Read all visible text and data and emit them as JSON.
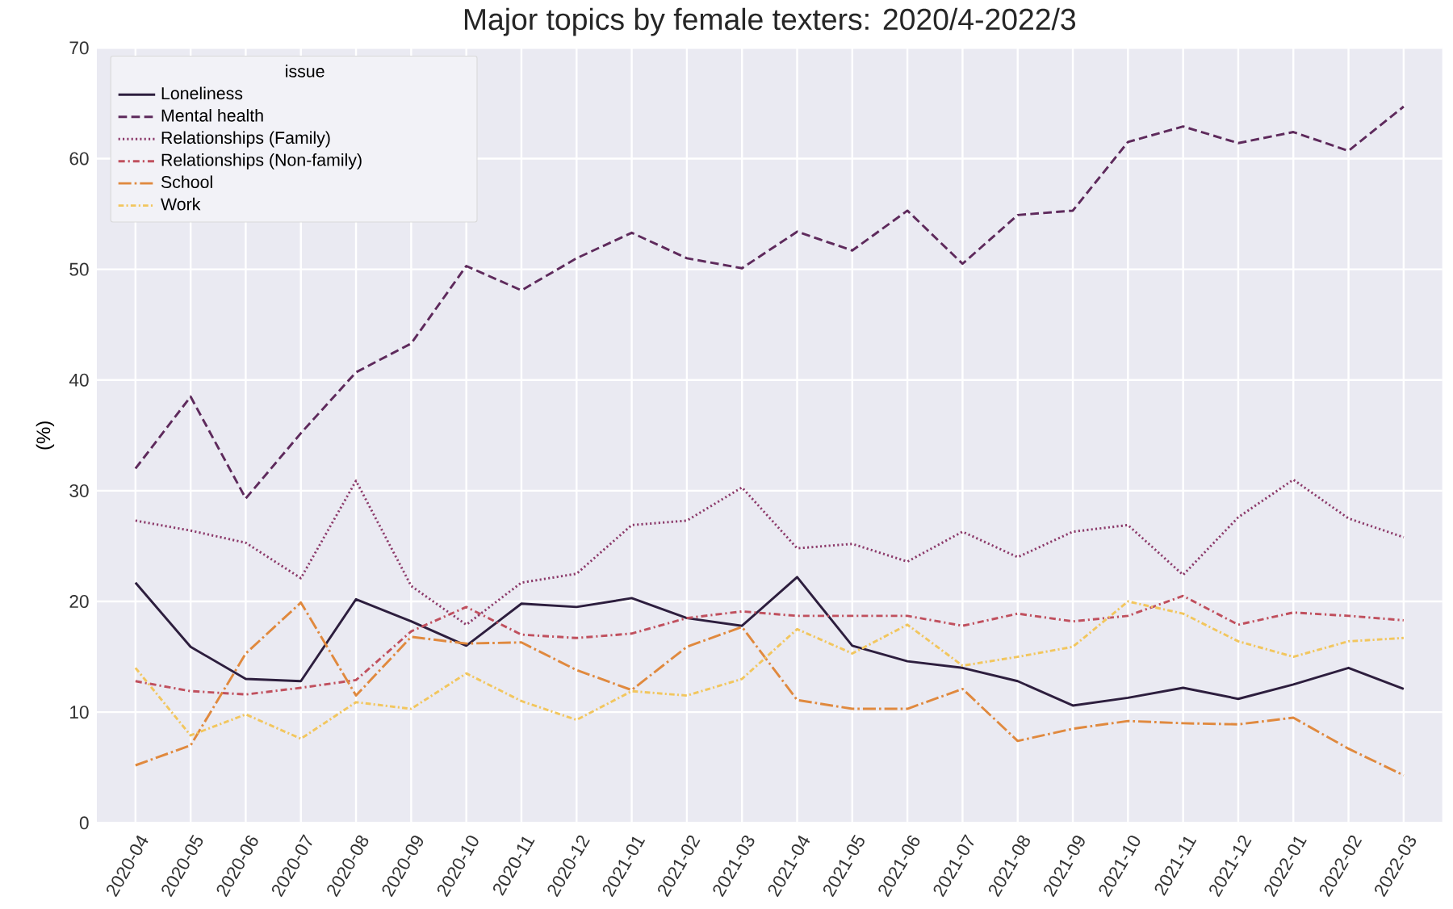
{
  "chart_data": {
    "type": "line",
    "title": "Major topics by female texters: 2020/4-2022/3",
    "ylabel": "(%)",
    "legend_title": "issue",
    "legend": "top left",
    "grid": true,
    "categories": [
      "2020-04",
      "2020-05",
      "2020-06",
      "2020-07",
      "2020-08",
      "2020-09",
      "2020-10",
      "2020-11",
      "2020-12",
      "2021-01",
      "2021-02",
      "2021-03",
      "2021-04",
      "2021-05",
      "2021-06",
      "2021-07",
      "2021-08",
      "2021-09",
      "2021-10",
      "2021-11",
      "2021-12",
      "2022-01",
      "2022-02",
      "2022-03"
    ],
    "ylim": [
      0,
      70
    ],
    "yticks": [
      0,
      10,
      20,
      30,
      40,
      50,
      60,
      70
    ],
    "series": [
      {
        "name": "Loneliness",
        "color": "#2d1e3e",
        "line_style": "solid",
        "values": [
          21.7,
          15.9,
          13.0,
          12.8,
          20.2,
          18.2,
          16.0,
          19.8,
          19.5,
          20.3,
          18.5,
          17.8,
          22.2,
          16.0,
          14.6,
          14.0,
          12.8,
          10.6,
          11.3,
          12.2,
          11.2,
          12.5,
          14.0,
          12.1
        ]
      },
      {
        "name": "Mental health",
        "color": "#5e2a5c",
        "line_style": "dashed",
        "values": [
          32.0,
          38.5,
          29.3,
          35.2,
          40.7,
          43.3,
          50.3,
          48.1,
          51.0,
          53.3,
          51.0,
          50.1,
          53.4,
          51.7,
          55.3,
          50.5,
          54.9,
          55.3,
          61.5,
          62.9,
          61.4,
          62.4,
          60.7,
          64.7
        ]
      },
      {
        "name": "Relationships (Family)",
        "color": "#8c3a6a",
        "line_style": "dotted",
        "values": [
          27.3,
          26.4,
          25.3,
          22.1,
          30.9,
          21.4,
          17.9,
          21.7,
          22.5,
          26.9,
          27.3,
          30.3,
          24.8,
          25.2,
          23.6,
          26.3,
          24.0,
          26.3,
          26.9,
          22.4,
          27.6,
          31.0,
          27.5,
          25.8
        ]
      },
      {
        "name": "Relationships (Non-family)",
        "color": "#c0505e",
        "line_style": "dashdotted",
        "values": [
          12.8,
          11.9,
          11.6,
          12.2,
          12.9,
          17.3,
          19.5,
          17.0,
          16.7,
          17.1,
          18.5,
          19.1,
          18.7,
          18.7,
          18.7,
          17.8,
          18.9,
          18.2,
          18.7,
          20.5,
          17.9,
          19.0,
          18.7,
          18.3
        ]
      },
      {
        "name": "School",
        "color": "#e0893e",
        "line_style": "loosely dashdotted",
        "values": [
          5.2,
          7.0,
          15.3,
          19.9,
          11.5,
          16.8,
          16.2,
          16.3,
          13.8,
          12.0,
          15.9,
          17.7,
          11.1,
          10.3,
          10.3,
          12.1,
          7.4,
          8.5,
          9.2,
          9.0,
          8.9,
          9.5,
          6.7,
          4.3
        ]
      },
      {
        "name": "Work",
        "color": "#f2c65e",
        "line_style": "dashdotdotted",
        "values": [
          14.0,
          7.9,
          9.8,
          7.6,
          10.9,
          10.3,
          13.5,
          11.0,
          9.3,
          11.9,
          11.5,
          13.0,
          17.5,
          15.3,
          17.9,
          14.2,
          15.0,
          15.9,
          20.0,
          18.9,
          16.4,
          15.0,
          16.4,
          16.7
        ]
      }
    ]
  }
}
